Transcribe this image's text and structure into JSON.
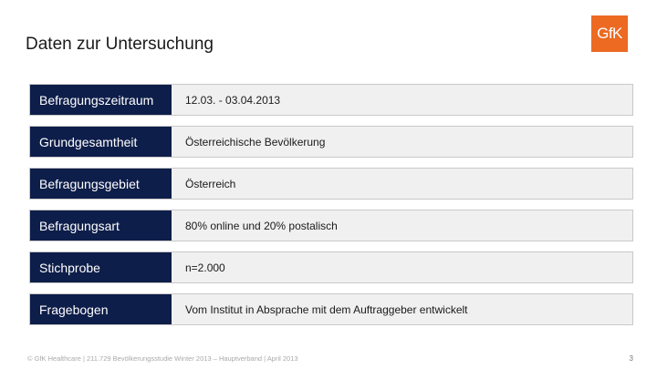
{
  "title": "Daten zur Untersuchung",
  "logo": {
    "text": "GfK",
    "color": "#ec6a22"
  },
  "rows": [
    {
      "label": "Befragungszeitraum",
      "value": "12.03. - 03.04.2013"
    },
    {
      "label": "Grundgesamtheit",
      "value": "Österreichische Bevölkerung"
    },
    {
      "label": "Befragungsgebiet",
      "value": "Österreich"
    },
    {
      "label": "Befragungsart",
      "value": "80% online und 20% postalisch"
    },
    {
      "label": "Stichprobe",
      "value": "n=2.000"
    },
    {
      "label": "Fragebogen",
      "value": "Vom Institut in Absprache mit dem Auftraggeber entwickelt"
    }
  ],
  "footer": "© GfK Healthcare | 211.729 Bevölkerungsstudie Winter 2013 – Hauptverband | April 2013",
  "page_number": "3",
  "colors": {
    "label_bg": "#0e1e4a",
    "row_bg": "#f0f0f0",
    "accent": "#ec6a22"
  }
}
